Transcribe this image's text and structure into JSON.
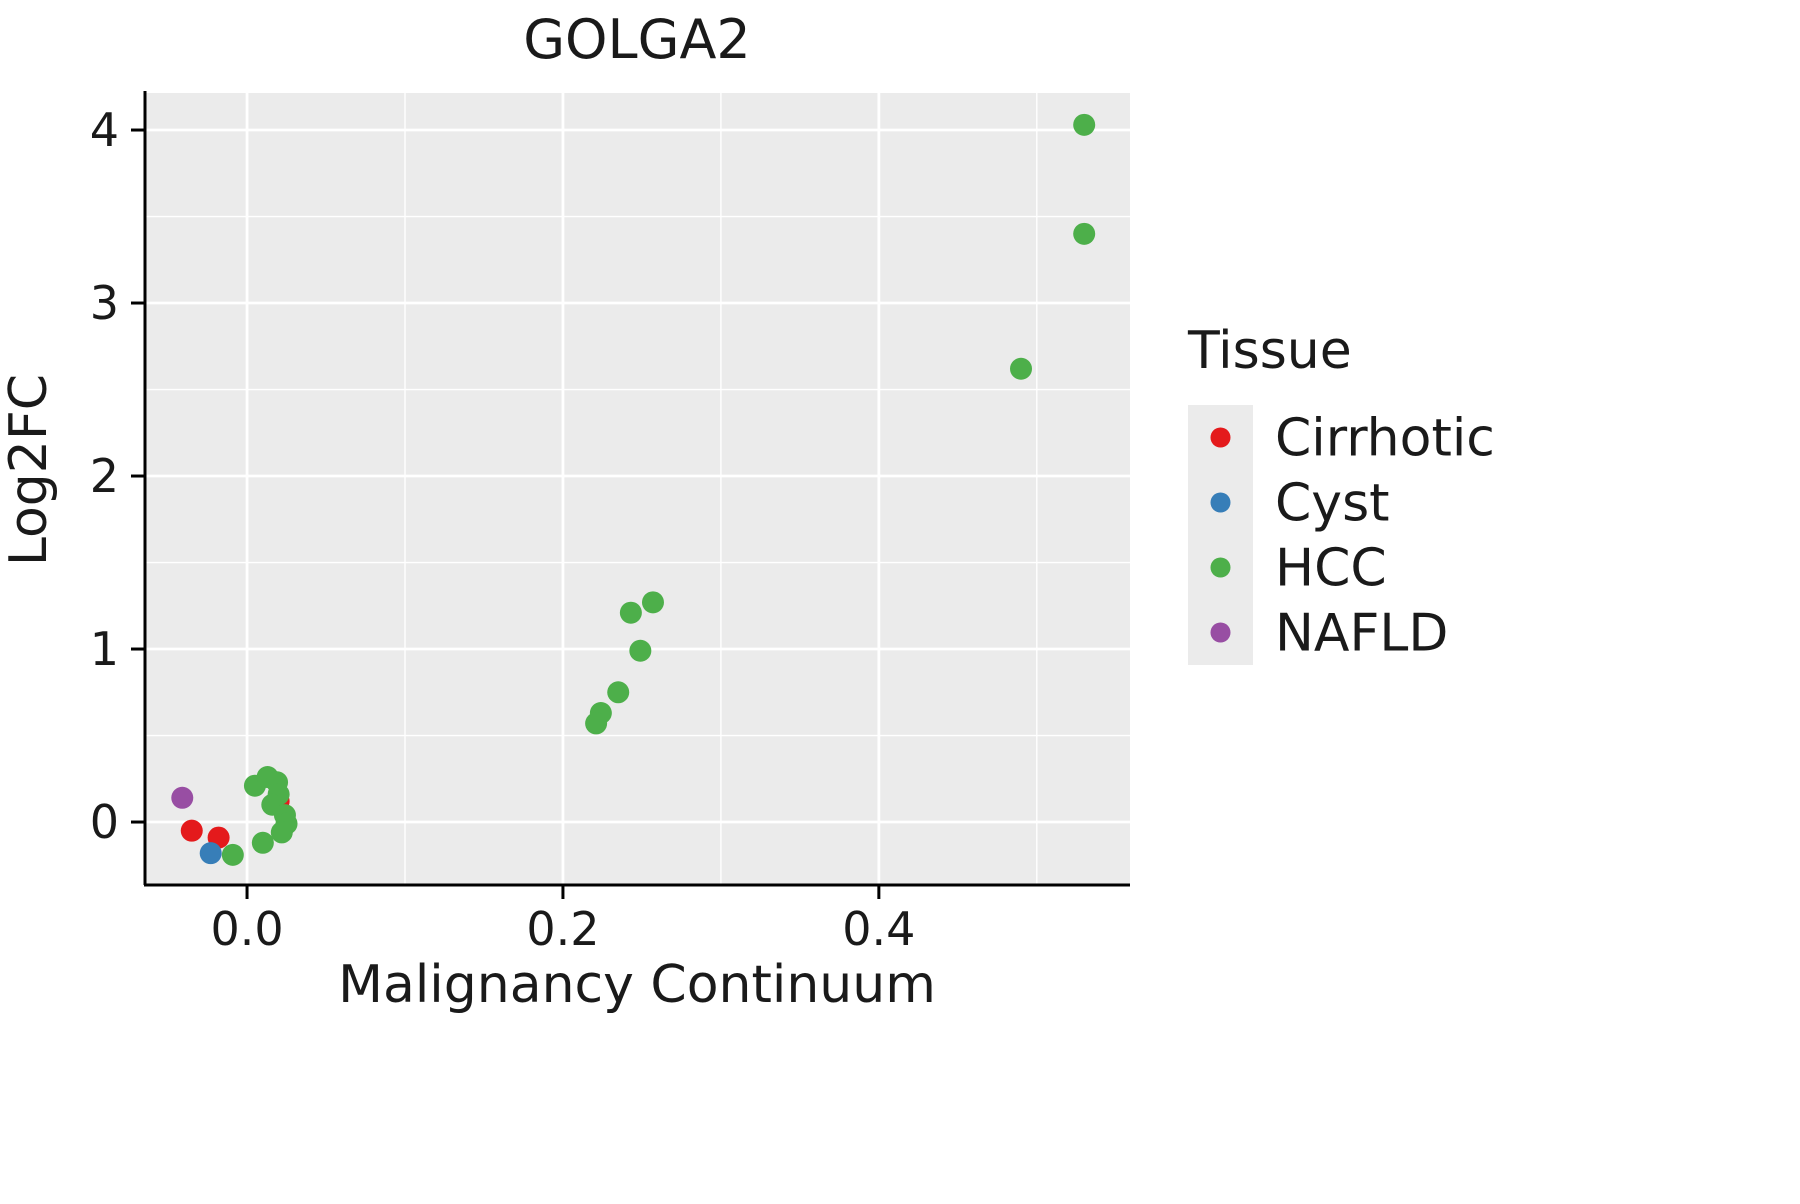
{
  "chart_data": {
    "type": "scatter",
    "title": "GOLGA2",
    "xlabel": "Malignancy Continuum",
    "ylabel": "Log2FC",
    "xlim": [
      -0.0646,
      0.559
    ],
    "ylim": [
      -0.364,
      4.214
    ],
    "x_ticks": [
      0.0,
      0.2,
      0.4
    ],
    "x_tick_labels": [
      "0.0",
      "0.2",
      "0.4"
    ],
    "x_minor_ticks": [
      0.1,
      0.3,
      0.5
    ],
    "y_ticks": [
      0,
      1,
      2,
      3,
      4
    ],
    "y_tick_labels": [
      "0",
      "1",
      "2",
      "3",
      "4"
    ],
    "y_minor_ticks": [
      0.5,
      1.5,
      2.5,
      3.5
    ],
    "grid": true,
    "panel_background": "#EBEBEB",
    "grid_color": "#FFFFFF",
    "axis_color": "#000000",
    "legend_title": "Tissue",
    "legend_position": "right",
    "legend_key_background": "#EBEBEB",
    "series": [
      {
        "name": "Cirrhotic",
        "color": "#E41A1C",
        "points": [
          [
            -0.035,
            -0.05
          ],
          [
            -0.018,
            -0.09
          ],
          [
            0.02,
            0.12
          ]
        ]
      },
      {
        "name": "Cyst",
        "color": "#377EB8",
        "points": [
          [
            -0.023,
            -0.18
          ]
        ]
      },
      {
        "name": "HCC",
        "color": "#4DAF4A",
        "points": [
          [
            0.53,
            4.03
          ],
          [
            0.53,
            3.4
          ],
          [
            0.49,
            2.62
          ],
          [
            0.257,
            1.27
          ],
          [
            0.243,
            1.21
          ],
          [
            0.249,
            0.99
          ],
          [
            0.235,
            0.75
          ],
          [
            0.224,
            0.63
          ],
          [
            0.221,
            0.57
          ],
          [
            0.005,
            0.21
          ],
          [
            0.013,
            0.26
          ],
          [
            0.019,
            0.23
          ],
          [
            0.02,
            0.16
          ],
          [
            0.016,
            0.1
          ],
          [
            0.024,
            0.04
          ],
          [
            0.025,
            -0.01
          ],
          [
            0.022,
            -0.06
          ],
          [
            0.01,
            -0.12
          ],
          [
            -0.009,
            -0.19
          ]
        ]
      },
      {
        "name": "NAFLD",
        "color": "#984EA3",
        "points": [
          [
            -0.041,
            0.14
          ]
        ]
      }
    ]
  }
}
